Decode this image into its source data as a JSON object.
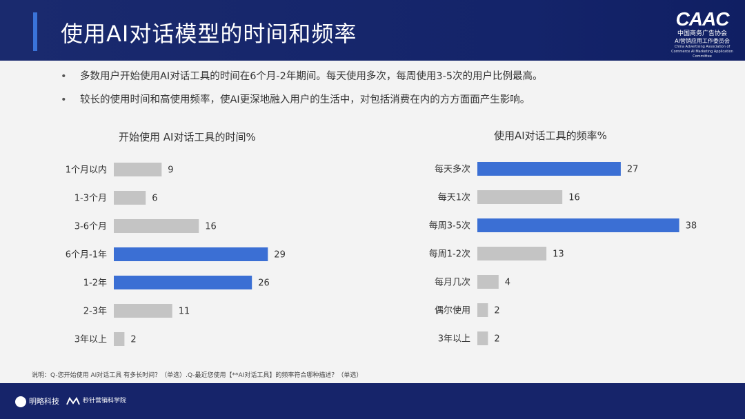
{
  "header": {
    "title": "使用AI对话模型的时间和频率"
  },
  "logo": {
    "mark": "CAAC",
    "line1": "中国商务广告协会",
    "line2": "AI营销应用工作委员会",
    "line3": "China Advertising Association of Commerce AI Marketing Application Committee"
  },
  "bullets": [
    "多数用户开始使用AI对话工具的时间在6个月-2年期间。每天使用多次，每周使用3-5次的用户比例最高。",
    "较长的使用时间和高使用频率，使AI更深地融入用户的生活中，对包括消费在内的方方面面产生影响。"
  ],
  "colors": {
    "highlight": "#3b6fd4",
    "normal": "#c4c4c4"
  },
  "chart_data": [
    {
      "type": "bar",
      "orientation": "horizontal",
      "title": "开始使用 AI对话工具的时间%",
      "categories": [
        "1个月以内",
        "1-3个月",
        "3-6个月",
        "6个月-1年",
        "1-2年",
        "2-3年",
        "3年以上"
      ],
      "values": [
        9,
        6,
        16,
        29,
        26,
        11,
        2
      ],
      "highlighted": [
        false,
        false,
        false,
        true,
        true,
        false,
        false
      ]
    },
    {
      "type": "bar",
      "orientation": "horizontal",
      "title": "使用AI对话工具的频率%",
      "categories": [
        "每天多次",
        "每天1次",
        "每周3-5次",
        "每周1-2次",
        "每月几次",
        "偶尔使用",
        "3年以上"
      ],
      "values": [
        27,
        16,
        38,
        13,
        4,
        2,
        2
      ],
      "highlighted": [
        true,
        false,
        true,
        false,
        false,
        false,
        false
      ]
    }
  ],
  "footnote": "说明：Q-您开始使用 AI对话工具 有多长时间？（单选）.Q-最近您使用【**AI对话工具】的频率符合哪种描述？（单选）",
  "footer": {
    "brand1": "明略科技",
    "brand2": "秒针营销科学院"
  }
}
